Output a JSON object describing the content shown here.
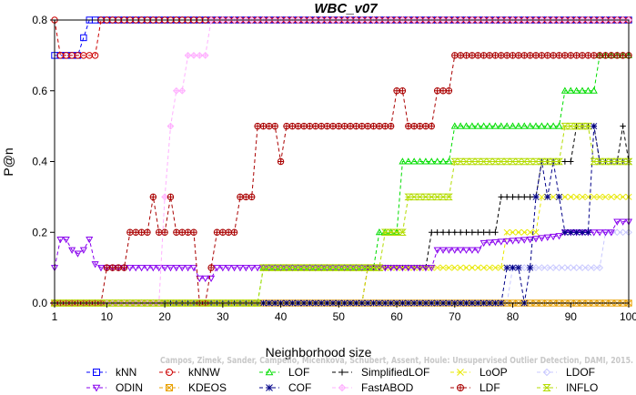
{
  "chart_data": {
    "type": "line",
    "title": "WBC_v07",
    "xlabel": "Neighborhood size",
    "ylabel": "P@n",
    "xlim": [
      1,
      100
    ],
    "ylim": [
      0,
      0.8
    ],
    "xticks": [
      1,
      10,
      20,
      30,
      40,
      50,
      60,
      70,
      80,
      90,
      100
    ],
    "yticks": [
      0.0,
      0.2,
      0.4,
      0.6,
      0.8
    ],
    "xtick_labels": [
      "1",
      "10",
      "20",
      "30",
      "40",
      "50",
      "60",
      "70",
      "80",
      "90",
      "100"
    ],
    "ytick_labels": [
      "0.0",
      "0.2",
      "0.4",
      "0.6",
      "0.8"
    ],
    "grid": false,
    "legend_position": "bottom",
    "annotation": "Campos, Zimek, Sander, Campello, Micenkova, Schubert, Assent, Houle: Unsupervised Outlier Detection, DAMI, 2015.",
    "series": [
      {
        "name": "kNN",
        "color": "#0000ff",
        "marker": "square",
        "segments": [
          [
            1,
            0.7
          ],
          [
            5,
            0.7
          ],
          [
            6,
            0.75
          ],
          [
            7,
            0.8
          ],
          [
            100,
            0.8
          ]
        ]
      },
      {
        "name": "kNNW",
        "color": "#cc0000",
        "marker": "circle",
        "segments": [
          [
            1,
            0.8
          ],
          [
            2,
            0.7
          ],
          [
            8,
            0.7
          ],
          [
            9,
            0.8
          ],
          [
            100,
            0.8
          ]
        ]
      },
      {
        "name": "LOF",
        "color": "#00dd00",
        "marker": "triangle-up",
        "segments": [
          [
            1,
            0.0
          ],
          [
            36,
            0.0
          ],
          [
            37,
            0.1
          ],
          [
            56,
            0.1
          ],
          [
            57,
            0.2
          ],
          [
            60,
            0.2
          ],
          [
            61,
            0.4
          ],
          [
            69,
            0.4
          ],
          [
            70,
            0.5
          ],
          [
            88,
            0.5
          ],
          [
            89,
            0.6
          ],
          [
            94,
            0.6
          ],
          [
            95,
            0.7
          ],
          [
            100,
            0.7
          ]
        ]
      },
      {
        "name": "SimplifiedLOF",
        "color": "#000000",
        "marker": "plus",
        "segments": [
          [
            1,
            0.0
          ],
          [
            54,
            0.0
          ],
          [
            55,
            0.1
          ],
          [
            65,
            0.1
          ],
          [
            66,
            0.2
          ],
          [
            77,
            0.2
          ],
          [
            78,
            0.3
          ],
          [
            84,
            0.3
          ],
          [
            85,
            0.4
          ],
          [
            90,
            0.4
          ],
          [
            91,
            0.5
          ],
          [
            94,
            0.5
          ],
          [
            95,
            0.4
          ],
          [
            98,
            0.4
          ],
          [
            99,
            0.5
          ],
          [
            100,
            0.4
          ]
        ]
      },
      {
        "name": "LoOP",
        "color": "#e8e800",
        "marker": "x",
        "segments": [
          [
            1,
            0.0
          ],
          [
            54,
            0.0
          ],
          [
            55,
            0.1
          ],
          [
            78,
            0.1
          ],
          [
            79,
            0.2
          ],
          [
            84,
            0.2
          ],
          [
            85,
            0.3
          ],
          [
            100,
            0.3
          ]
        ]
      },
      {
        "name": "LDOF",
        "color": "#c8c8ff",
        "marker": "diamond",
        "segments": [
          [
            1,
            0.0
          ],
          [
            79,
            0.0
          ],
          [
            80,
            0.1
          ],
          [
            95,
            0.1
          ],
          [
            96,
            0.2
          ],
          [
            100,
            0.2
          ]
        ]
      },
      {
        "name": "ODIN",
        "color": "#8800ee",
        "marker": "triangle-down",
        "segments": [
          [
            1,
            0.1
          ],
          [
            2,
            0.18
          ],
          [
            3,
            0.18
          ],
          [
            4,
            0.15
          ],
          [
            5,
            0.14
          ],
          [
            6,
            0.15
          ],
          [
            7,
            0.18
          ],
          [
            8,
            0.11
          ],
          [
            9,
            0.1
          ],
          [
            25,
            0.1
          ],
          [
            26,
            0.07
          ],
          [
            28,
            0.07
          ],
          [
            29,
            0.1
          ],
          [
            66,
            0.1
          ],
          [
            67,
            0.15
          ],
          [
            74,
            0.15
          ],
          [
            75,
            0.17
          ],
          [
            83,
            0.18
          ],
          [
            88,
            0.19
          ],
          [
            89,
            0.2
          ],
          [
            97,
            0.2
          ],
          [
            98,
            0.23
          ],
          [
            100,
            0.23
          ]
        ]
      },
      {
        "name": "KDEOS",
        "color": "#e8a000",
        "marker": "square-x",
        "segments": [
          [
            1,
            0.0
          ],
          [
            100,
            0.0
          ]
        ]
      },
      {
        "name": "COF",
        "color": "#000088",
        "marker": "asterisk",
        "segments": [
          [
            1,
            0.0
          ],
          [
            78,
            0.0
          ],
          [
            79,
            0.1
          ],
          [
            81,
            0.1
          ],
          [
            82,
            0.0
          ],
          [
            83,
            0.1
          ],
          [
            84,
            0.3
          ],
          [
            85,
            0.4
          ],
          [
            86,
            0.3
          ],
          [
            87,
            0.4
          ],
          [
            88,
            0.3
          ],
          [
            89,
            0.2
          ],
          [
            93,
            0.2
          ],
          [
            94,
            0.5
          ],
          [
            95,
            0.4
          ],
          [
            100,
            0.4
          ]
        ]
      },
      {
        "name": "FastABOD",
        "color": "#ffb0ff",
        "marker": "diamond-plus",
        "segments": [
          [
            1,
            0.0
          ],
          [
            19,
            0.0
          ],
          [
            20,
            0.3
          ],
          [
            21,
            0.5
          ],
          [
            22,
            0.6
          ],
          [
            23,
            0.6
          ],
          [
            24,
            0.7
          ],
          [
            27,
            0.7
          ],
          [
            28,
            0.8
          ],
          [
            100,
            0.8
          ]
        ]
      },
      {
        "name": "LDF",
        "color": "#aa0000",
        "marker": "circle-plus",
        "segments": [
          [
            1,
            0.0
          ],
          [
            9,
            0.0
          ],
          [
            10,
            0.1
          ],
          [
            13,
            0.1
          ],
          [
            14,
            0.2
          ],
          [
            17,
            0.2
          ],
          [
            18,
            0.3
          ],
          [
            19,
            0.2
          ],
          [
            20,
            0.2
          ],
          [
            21,
            0.3
          ],
          [
            22,
            0.2
          ],
          [
            25,
            0.2
          ],
          [
            26,
            0.0
          ],
          [
            27,
            0.0
          ],
          [
            28,
            0.1
          ],
          [
            29,
            0.2
          ],
          [
            32,
            0.2
          ],
          [
            33,
            0.3
          ],
          [
            35,
            0.3
          ],
          [
            36,
            0.5
          ],
          [
            39,
            0.5
          ],
          [
            40,
            0.4
          ],
          [
            41,
            0.5
          ],
          [
            59,
            0.5
          ],
          [
            60,
            0.6
          ],
          [
            61,
            0.6
          ],
          [
            62,
            0.5
          ],
          [
            66,
            0.5
          ],
          [
            67,
            0.6
          ],
          [
            69,
            0.6
          ],
          [
            70,
            0.7
          ],
          [
            100,
            0.7
          ]
        ]
      },
      {
        "name": "INFLO",
        "color": "#b4dc00",
        "marker": "hourglass",
        "segments": [
          [
            1,
            0.0
          ],
          [
            36,
            0.0
          ],
          [
            37,
            0.1
          ],
          [
            57,
            0.1
          ],
          [
            58,
            0.2
          ],
          [
            61,
            0.2
          ],
          [
            62,
            0.3
          ],
          [
            69,
            0.3
          ],
          [
            70,
            0.4
          ],
          [
            88,
            0.4
          ],
          [
            89,
            0.5
          ],
          [
            93,
            0.5
          ],
          [
            94,
            0.4
          ],
          [
            100,
            0.4
          ]
        ]
      }
    ]
  }
}
